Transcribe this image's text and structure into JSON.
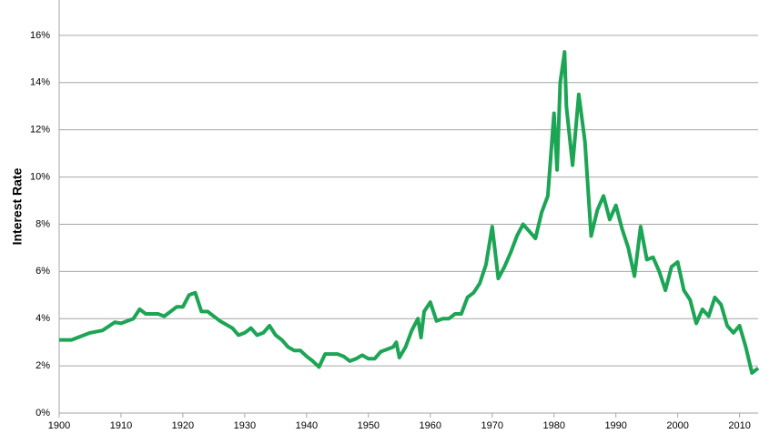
{
  "chart_data": {
    "type": "line",
    "y_label": "Interest Rate",
    "x": [
      1900,
      1902,
      1905,
      1907,
      1909,
      1910,
      1912,
      1913,
      1914,
      1916,
      1917,
      1919,
      1920,
      1921,
      1922,
      1923,
      1924,
      1926,
      1928,
      1929,
      1930,
      1931,
      1932,
      1933,
      1934,
      1935,
      1936,
      1937,
      1938,
      1939,
      1940,
      1941,
      1942,
      1943,
      1945,
      1946,
      1947,
      1948,
      1949,
      1950,
      1951,
      1952,
      1954,
      1954.5,
      1955,
      1956,
      1957,
      1958,
      1958.5,
      1959,
      1960,
      1961,
      1962,
      1963,
      1964,
      1965,
      1966,
      1967,
      1968,
      1969,
      1970,
      1971,
      1972,
      1973,
      1974,
      1975,
      1976,
      1977,
      1978,
      1979,
      1980,
      1980.5,
      1981,
      1981.7,
      1982,
      1983,
      1984,
      1985,
      1986,
      1987,
      1988,
      1989,
      1990,
      1991,
      1992,
      1993,
      1994,
      1995,
      1996,
      1997,
      1998,
      1999,
      2000,
      2001,
      2002,
      2003,
      2004,
      2005,
      2006,
      2007,
      2008,
      2009,
      2010,
      2011,
      2012,
      2013
    ],
    "series": [
      {
        "name": "Interest Rate",
        "color": "#1ba554",
        "values": [
          3.1,
          3.1,
          3.4,
          3.5,
          3.85,
          3.8,
          4.0,
          4.4,
          4.2,
          4.2,
          4.1,
          4.5,
          4.5,
          5.0,
          5.1,
          4.3,
          4.3,
          3.9,
          3.6,
          3.3,
          3.4,
          3.6,
          3.3,
          3.4,
          3.7,
          3.3,
          3.1,
          2.8,
          2.65,
          2.65,
          2.4,
          2.2,
          1.95,
          2.5,
          2.5,
          2.4,
          2.2,
          2.3,
          2.45,
          2.3,
          2.3,
          2.6,
          2.8,
          3.0,
          2.35,
          2.8,
          3.5,
          4.0,
          3.2,
          4.3,
          4.7,
          3.9,
          4.0,
          4.0,
          4.2,
          4.2,
          4.9,
          5.1,
          5.5,
          6.3,
          7.9,
          5.7,
          6.2,
          6.8,
          7.5,
          8.0,
          7.7,
          7.4,
          8.5,
          9.2,
          12.7,
          10.3,
          14.0,
          15.3,
          13.0,
          10.5,
          13.5,
          11.5,
          7.5,
          8.6,
          9.2,
          8.2,
          8.8,
          7.8,
          7.0,
          5.8,
          7.9,
          6.5,
          6.6,
          6.0,
          5.2,
          6.2,
          6.4,
          5.2,
          4.8,
          3.8,
          4.4,
          4.1,
          4.9,
          4.6,
          3.7,
          3.4,
          3.7,
          2.8,
          1.7,
          1.9
        ]
      }
    ],
    "xlim": [
      1900,
      2013
    ],
    "xticks": [
      1900,
      1910,
      1920,
      1930,
      1940,
      1950,
      1960,
      1970,
      1980,
      1990,
      2000,
      2010
    ],
    "ylim": [
      0,
      17.5
    ],
    "yticks": [
      {
        "value": 0,
        "label": "0%"
      },
      {
        "value": 2,
        "label": "2%"
      },
      {
        "value": 4,
        "label": "4%"
      },
      {
        "value": 6,
        "label": "6%"
      },
      {
        "value": 8,
        "label": "8%"
      },
      {
        "value": 10,
        "label": "10%"
      },
      {
        "value": 12,
        "label": "12%"
      },
      {
        "value": 14,
        "label": "14%"
      },
      {
        "value": 16,
        "label": "16%"
      }
    ],
    "grid": true
  }
}
